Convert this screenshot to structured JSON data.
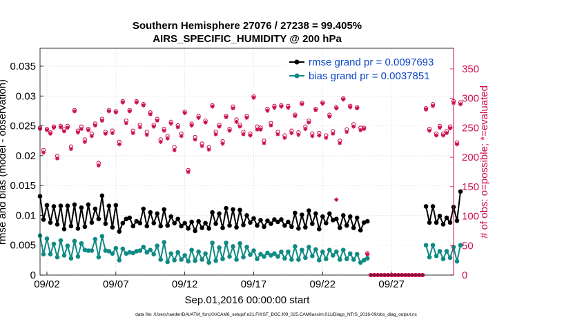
{
  "chart_data": {
    "type": "line",
    "title_line1": "Southern Hemisphere 27076 / 27238 = 99.405%",
    "title_line2": "AIRS_SPECIFIC_HUMIDITY @ 200 hPa",
    "xlabel": "Sep.01,2016 00:00:00 start",
    "ylabel_left": "rmse and bias (model - observation)",
    "ylabel_right": "# of obs: o=possible; *=evaluated",
    "footnote": "data file: /Users/raeder/DAI/ATM_forcXX/CAM6_setup/f.e21.FHIST_BGC.f09_025.CAM6assim.011/Diags_NTrS_2016-09/obs_diag_output.nc",
    "x_range_days": [
      1.5,
      31.5
    ],
    "ylim_left": [
      0,
      0.038
    ],
    "ylim_right": [
      0,
      385
    ],
    "left_ticks": [
      {
        "v": 0,
        "label": "0"
      },
      {
        "v": 0.005,
        "label": "0.005"
      },
      {
        "v": 0.01,
        "label": "0.01"
      },
      {
        "v": 0.015,
        "label": "0.015"
      },
      {
        "v": 0.02,
        "label": "0.02"
      },
      {
        "v": 0.025,
        "label": "0.025"
      },
      {
        "v": 0.03,
        "label": "0.03"
      },
      {
        "v": 0.035,
        "label": "0.035"
      }
    ],
    "right_ticks": [
      {
        "v": 0,
        "label": "0"
      },
      {
        "v": 50,
        "label": "50"
      },
      {
        "v": 100,
        "label": "100"
      },
      {
        "v": 150,
        "label": "150"
      },
      {
        "v": 200,
        "label": "200"
      },
      {
        "v": 250,
        "label": "250"
      },
      {
        "v": 300,
        "label": "300"
      },
      {
        "v": 350,
        "label": "350"
      }
    ],
    "x_ticks": [
      {
        "v": 2,
        "label": "09/02"
      },
      {
        "v": 7,
        "label": "09/07"
      },
      {
        "v": 12,
        "label": "09/12"
      },
      {
        "v": 17,
        "label": "09/17"
      },
      {
        "v": 22,
        "label": "09/22"
      },
      {
        "v": 27,
        "label": "09/27"
      }
    ],
    "colors": {
      "rmse": "#000000",
      "bias": "#0f8a84",
      "obs": "#cc0e52",
      "legend_text": "#0b46c8"
    },
    "series": [
      {
        "name": "rmse grand pr = 0.0097693",
        "x_start": 1.5,
        "step": 0.25,
        "values": [
          0.0132,
          0.0093,
          0.0117,
          0.0088,
          0.0115,
          0.0085,
          0.0116,
          0.0077,
          0.0116,
          0.0082,
          0.0118,
          0.0078,
          0.0113,
          0.0081,
          0.0118,
          0.0088,
          0.0111,
          0.0094,
          0.0133,
          0.0086,
          0.0116,
          0.008,
          0.0117,
          0.0073,
          0.0087,
          0.0094,
          0.0096,
          0.0082,
          0.009,
          0.0087,
          0.0111,
          0.0082,
          0.0105,
          0.0087,
          0.0103,
          0.0082,
          0.011,
          0.0083,
          0.0098,
          0.0087,
          0.0094,
          0.0082,
          0.0087,
          0.0078,
          0.0089,
          0.0074,
          0.009,
          0.0079,
          0.0087,
          0.0078,
          0.0105,
          0.0086,
          0.0103,
          0.0079,
          0.0112,
          0.0083,
          0.011,
          0.008,
          0.0109,
          0.0084,
          0.01,
          0.0088,
          0.0095,
          0.0083,
          0.0092,
          0.0081,
          0.0091,
          0.0086,
          0.0093,
          0.0089,
          0.0093,
          0.0083,
          0.0089,
          0.0081,
          0.0104,
          0.0078,
          0.0101,
          0.008,
          0.0108,
          0.0086,
          0.0103,
          0.0077,
          0.0098,
          0.0087,
          0.0103,
          0.0092,
          0.0094,
          0.0079,
          0.01,
          0.0083,
          0.0098,
          0.0079,
          0.0096,
          0.0075,
          0.0088,
          0.009,
          null,
          null,
          null,
          null,
          null,
          null,
          null,
          null,
          null,
          null,
          null,
          null,
          null,
          null,
          null,
          null,
          0.0115,
          0.0088,
          0.0115,
          0.0088,
          0.0099,
          0.0085,
          0.0096,
          0.0088,
          0.0114,
          0.0091,
          0.014
        ],
        "markers_until": 96
      },
      {
        "name": "bias grand pr = 0.0037851",
        "x_start": 1.5,
        "step": 0.25,
        "values": [
          0.0066,
          0.0035,
          0.0061,
          0.0035,
          0.0052,
          0.003,
          0.0058,
          0.0033,
          0.0049,
          0.0028,
          0.0057,
          0.0031,
          0.0053,
          0.0042,
          0.0041,
          0.0041,
          0.006,
          0.003,
          0.0065,
          0.0041,
          0.004,
          0.0036,
          0.0045,
          0.0025,
          0.0044,
          0.0036,
          0.0038,
          0.0037,
          0.004,
          0.0041,
          0.0047,
          0.0038,
          0.0042,
          0.0035,
          0.0049,
          0.0026,
          0.0055,
          0.0022,
          0.0036,
          0.0025,
          0.0038,
          0.0026,
          0.0033,
          0.0023,
          0.0042,
          0.0024,
          0.0039,
          0.0026,
          0.0036,
          0.0021,
          0.0054,
          0.0024,
          0.0046,
          0.0027,
          0.0054,
          0.0031,
          0.0048,
          0.0026,
          0.0053,
          0.003,
          0.0047,
          0.0034,
          0.0041,
          0.0027,
          0.0035,
          0.0031,
          0.0037,
          0.0033,
          0.0036,
          0.0031,
          0.0039,
          0.0028,
          0.0039,
          0.0026,
          0.0048,
          0.0026,
          0.0042,
          0.0029,
          0.0047,
          0.0032,
          0.0043,
          0.0025,
          0.0039,
          0.0027,
          0.0042,
          0.0033,
          0.0039,
          0.0026,
          0.0042,
          0.0027,
          0.0036,
          0.0026,
          0.0035,
          0.0021,
          0.0025,
          0.0028,
          null,
          null,
          null,
          null,
          null,
          null,
          null,
          null,
          null,
          null,
          null,
          null,
          null,
          null,
          null,
          null,
          0.005,
          0.003,
          0.005,
          0.0032,
          0.004,
          0.0027,
          0.004,
          0.0029,
          0.0047,
          0.0023,
          0.005
        ]
      },
      {
        "name": "obs possible (o)",
        "x_start": 1.5,
        "step": 0.25,
        "values": [
          250,
          212,
          248,
          242,
          252,
          202,
          253,
          247,
          253,
          218,
          280,
          245,
          252,
          230,
          248,
          240,
          257,
          190,
          265,
          243,
          280,
          245,
          278,
          226,
          295,
          262,
          280,
          245,
          295,
          255,
          290,
          243,
          276,
          255,
          265,
          230,
          248,
          236,
          260,
          217,
          254,
          240,
          277,
          178,
          257,
          234,
          270,
          223,
          262,
          217,
          288,
          243,
          255,
          227,
          270,
          248,
          286,
          264,
          255,
          243,
          270,
          240,
          303,
          252,
          250,
          228,
          282,
          258,
          287,
          243,
          288,
          237,
          287,
          245,
          272,
          242,
          292,
          252,
          262,
          240,
          282,
          241,
          293,
          237,
          272,
          244,
          285,
          228,
          300,
          247,
          287,
          256,
          285,
          250,
          250,
          37,
          0,
          0,
          0,
          0,
          0,
          0,
          0,
          0,
          0,
          0,
          0,
          0,
          0,
          0,
          0,
          0,
          283,
          248,
          290,
          240,
          253,
          240,
          244,
          252,
          295,
          225,
          293
        ]
      },
      {
        "name": "obs evaluated (*)",
        "x_start": 1.5,
        "step": 0.25,
        "values": [
          248,
          208,
          246,
          240,
          250,
          198,
          251,
          244,
          250,
          214,
          278,
          242,
          248,
          226,
          246,
          236,
          254,
          186,
          262,
          240,
          278,
          241,
          276,
          222,
          293,
          258,
          278,
          241,
          293,
          251,
          288,
          238,
          273,
          252,
          262,
          226,
          245,
          232,
          257,
          212,
          251,
          236,
          275,
          175,
          254,
          230,
          267,
          219,
          259,
          213,
          286,
          239,
          252,
          223,
          268,
          245,
          283,
          260,
          252,
          239,
          267,
          237,
          301,
          247,
          247,
          224,
          279,
          254,
          284,
          239,
          286,
          233,
          284,
          241,
          270,
          238,
          290,
          248,
          259,
          236,
          280,
          237,
          291,
          233,
          269,
          240,
          283,
          224,
          298,
          243,
          285,
          252,
          283,
          246,
          248,
          35,
          0,
          0,
          0,
          0,
          0,
          0,
          0,
          0,
          0,
          0,
          0,
          0,
          0,
          0,
          0,
          0,
          281,
          245,
          287,
          237,
          250,
          237,
          241,
          249,
          292,
          222,
          290
        ]
      }
    ],
    "extra_obs_point": {
      "x": 23.0,
      "v": 128
    }
  }
}
